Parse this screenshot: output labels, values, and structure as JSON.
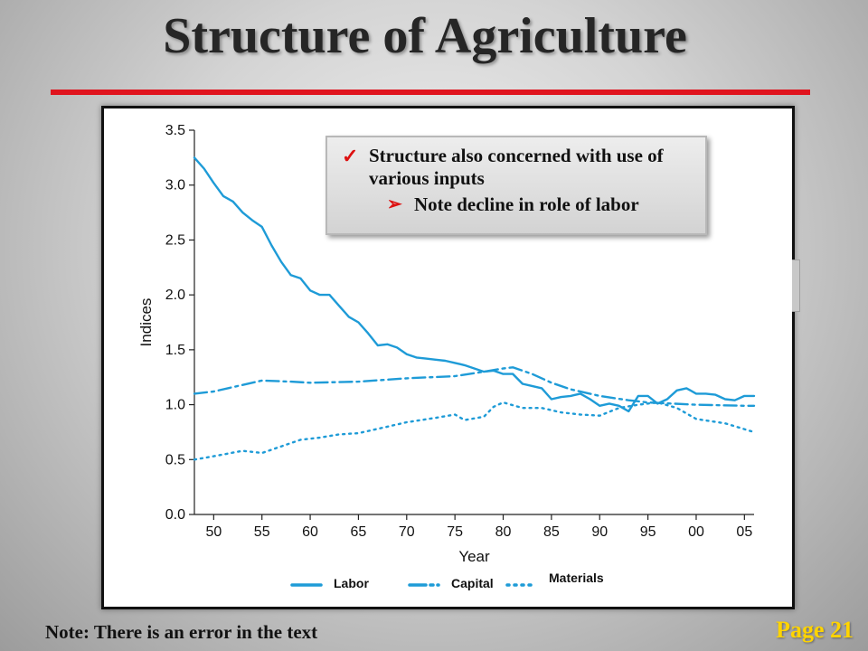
{
  "slide": {
    "title": "Structure of Agriculture",
    "callout": {
      "line1": "Structure also concerned  with use of various inputs",
      "line2": "Note decline in role of labor",
      "check_icon": "✓",
      "arrow_icon": "➢"
    },
    "note": "Note:  There is an error in the text",
    "page": "Page 21",
    "colors": {
      "title_rule": "#e0141e",
      "page_label": "#ffd400",
      "series": "#1e9bd7"
    }
  },
  "chart_data": {
    "type": "line",
    "xlabel": "Year",
    "ylabel": "Indices",
    "xlim": [
      1948,
      2006
    ],
    "ylim": [
      0,
      3.5
    ],
    "yticks": [
      0.0,
      0.5,
      1.0,
      1.5,
      2.0,
      2.5,
      3.0,
      3.5
    ],
    "ytick_labels": [
      "0.0",
      "0.5",
      "1.0",
      "1.5",
      "2.0",
      "2.5",
      "3.0",
      "3.5"
    ],
    "xticks": [
      1950,
      1955,
      1960,
      1965,
      1970,
      1975,
      1980,
      1985,
      1990,
      1995,
      2000,
      2005
    ],
    "xtick_labels": [
      "50",
      "55",
      "60",
      "65",
      "70",
      "75",
      "80",
      "85",
      "90",
      "95",
      "00",
      "05"
    ],
    "grid": false,
    "legend_position": "bottom",
    "series": [
      {
        "name": "Labor",
        "style": "solid",
        "x": [
          1948,
          1949,
          1950,
          1951,
          1952,
          1953,
          1954,
          1955,
          1956,
          1957,
          1958,
          1959,
          1960,
          1961,
          1962,
          1963,
          1964,
          1965,
          1966,
          1967,
          1968,
          1969,
          1970,
          1971,
          1972,
          1973,
          1974,
          1975,
          1976,
          1977,
          1978,
          1979,
          1980,
          1981,
          1982,
          1983,
          1984,
          1985,
          1986,
          1987,
          1988,
          1989,
          1990,
          1991,
          1992,
          1993,
          1994,
          1995,
          1996,
          1997,
          1998,
          1999,
          2000,
          2001,
          2002,
          2003,
          2004,
          2005,
          2006
        ],
        "values": [
          3.25,
          3.15,
          3.02,
          2.9,
          2.85,
          2.75,
          2.68,
          2.62,
          2.45,
          2.3,
          2.18,
          2.15,
          2.04,
          2.0,
          2.0,
          1.9,
          1.8,
          1.75,
          1.65,
          1.54,
          1.55,
          1.52,
          1.46,
          1.43,
          1.42,
          1.41,
          1.4,
          1.38,
          1.36,
          1.33,
          1.3,
          1.31,
          1.28,
          1.28,
          1.19,
          1.17,
          1.15,
          1.05,
          1.07,
          1.08,
          1.1,
          1.05,
          0.99,
          1.01,
          0.99,
          0.94,
          1.08,
          1.08,
          1.01,
          1.05,
          1.13,
          1.15,
          1.1,
          1.1,
          1.09,
          1.05,
          1.04,
          1.08,
          1.08
        ]
      },
      {
        "name": "Capital",
        "style": "dashdot",
        "x": [
          1948,
          1950,
          1952,
          1955,
          1958,
          1960,
          1965,
          1970,
          1975,
          1978,
          1980,
          1981,
          1983,
          1985,
          1987,
          1990,
          1993,
          1995,
          2000,
          2005,
          2006
        ],
        "values": [
          1.1,
          1.12,
          1.16,
          1.22,
          1.21,
          1.2,
          1.21,
          1.24,
          1.26,
          1.3,
          1.33,
          1.34,
          1.28,
          1.2,
          1.14,
          1.08,
          1.04,
          1.02,
          1.0,
          0.99,
          0.99
        ]
      },
      {
        "name": "Materials",
        "style": "dotted",
        "x": [
          1948,
          1950,
          1953,
          1955,
          1957,
          1959,
          1961,
          1963,
          1965,
          1968,
          1970,
          1973,
          1975,
          1976,
          1978,
          1979,
          1980,
          1982,
          1984,
          1986,
          1988,
          1990,
          1992,
          1994,
          1996,
          1998,
          2000,
          2003,
          2006
        ],
        "values": [
          0.5,
          0.53,
          0.58,
          0.56,
          0.62,
          0.68,
          0.7,
          0.73,
          0.74,
          0.8,
          0.84,
          0.88,
          0.91,
          0.86,
          0.89,
          0.98,
          1.02,
          0.97,
          0.97,
          0.93,
          0.91,
          0.9,
          0.97,
          1.0,
          1.02,
          0.97,
          0.87,
          0.83,
          0.75
        ]
      }
    ]
  }
}
